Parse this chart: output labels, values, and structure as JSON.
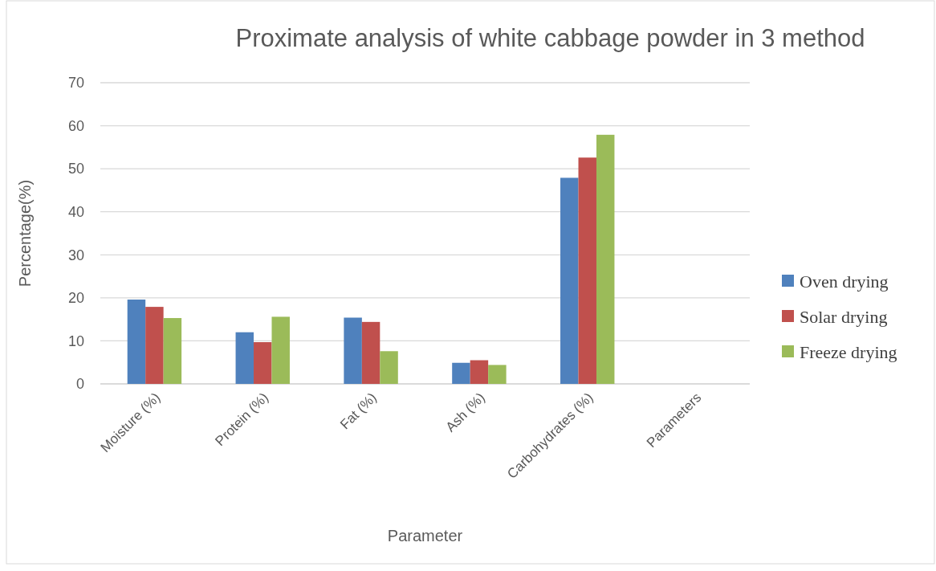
{
  "chart_data": {
    "type": "bar",
    "title": "Proximate analysis of white cabbage powder in 3 method",
    "xlabel": "Parameter",
    "ylabel": "Percentage(%)",
    "categories": [
      "Moisture (%)",
      "Protein (%)",
      "Fat (%)",
      "Ash (%)",
      "Carbohydrates (%)",
      "Parameters"
    ],
    "series": [
      {
        "name": "Oven drying",
        "color": "#4f81bd",
        "values": [
          19.6,
          12.0,
          15.4,
          4.9,
          47.9,
          null
        ]
      },
      {
        "name": "Solar drying",
        "color": "#c0504d",
        "values": [
          17.9,
          9.7,
          14.4,
          5.5,
          52.6,
          null
        ]
      },
      {
        "name": "Freeze drying",
        "color": "#9bbb59",
        "values": [
          15.3,
          15.6,
          7.6,
          4.4,
          57.9,
          null
        ]
      }
    ],
    "ylim": [
      0,
      70
    ],
    "yticks": [
      0,
      10,
      20,
      30,
      40,
      50,
      60,
      70
    ],
    "grid": "y",
    "legend": "right"
  }
}
